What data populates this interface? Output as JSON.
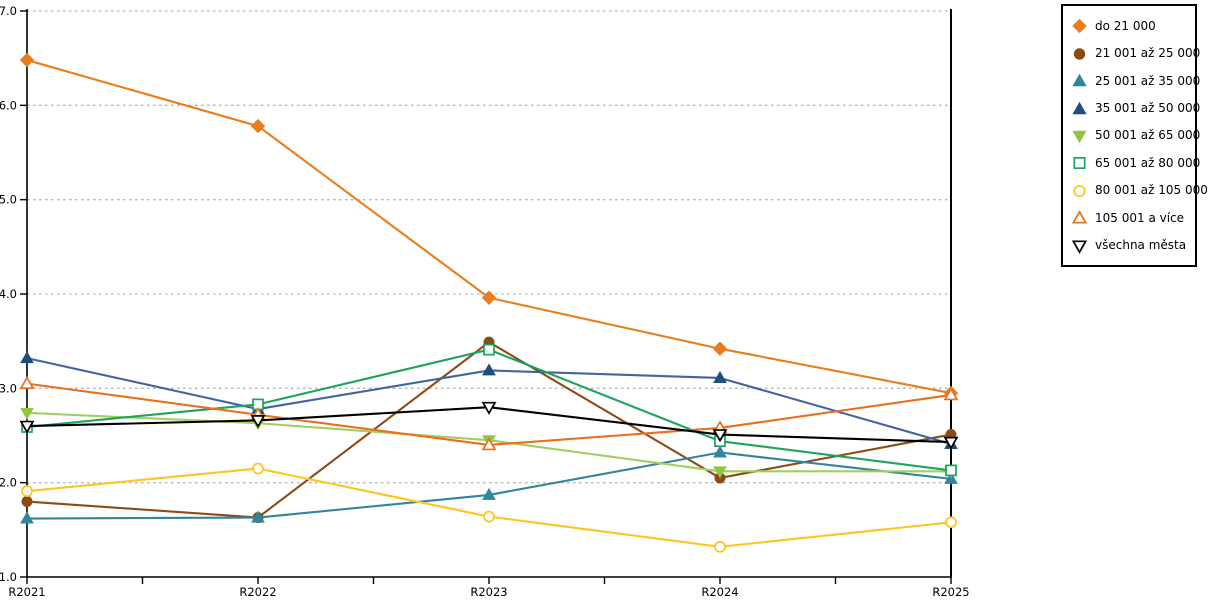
{
  "chart_data": {
    "type": "line",
    "title": "",
    "categories": [
      "R2021",
      "R2022",
      "R2023",
      "R2024",
      "R2025"
    ],
    "y_ticks": [
      "1.0",
      "2.0",
      "3.0",
      "4.0",
      "5.0",
      "6.0",
      "7.0"
    ],
    "ylim": [
      1.0,
      7.0
    ],
    "grid": "horizontal-dotted",
    "legend_position": "top-right",
    "colors": {
      "axis": "#000000",
      "gridline": "#B3B3B3",
      "background": "#FFFFFF"
    },
    "series": [
      {
        "name": "do 21 000",
        "color": "#E87D1E",
        "marker": "diamond",
        "marker_style": "filled",
        "values": [
          6.48,
          5.78,
          3.96,
          3.42,
          2.95
        ]
      },
      {
        "name": "21 001 až 25 000",
        "color": "#8C4A15",
        "marker": "circle",
        "marker_style": "filled",
        "values": [
          1.8,
          1.63,
          3.49,
          2.05,
          2.51
        ]
      },
      {
        "name": "25 001 až 35 000",
        "color": "#31859C",
        "marker": "triangle-up",
        "marker_style": "filled",
        "values": [
          1.62,
          1.63,
          1.87,
          2.32,
          2.04
        ]
      },
      {
        "name": "35 001 až 50 000",
        "color": "#40659C",
        "marker_color": "#1F4E79",
        "marker": "triangle-up",
        "marker_style": "filled",
        "values": [
          3.32,
          2.78,
          3.19,
          3.11,
          2.41
        ]
      },
      {
        "name": "50 001 až 65 000",
        "color": "#A4CD5F",
        "marker_color": "#8FC83C",
        "marker": "triangle-down",
        "marker_style": "filled",
        "values": [
          2.74,
          2.63,
          2.45,
          2.12,
          2.12
        ]
      },
      {
        "name": "65 001 až 80 000",
        "color": "#1EA35C",
        "marker": "square",
        "marker_style": "open",
        "values": [
          2.59,
          2.83,
          3.41,
          2.44,
          2.13
        ]
      },
      {
        "name": "80 001 až 105 000",
        "color": "#FFC41E",
        "marker": "circle",
        "marker_style": "open",
        "values": [
          1.91,
          2.15,
          1.64,
          1.32,
          1.58
        ]
      },
      {
        "name": "105 001 a více",
        "color": "#E8701C",
        "marker": "triangle-up",
        "marker_style": "open",
        "values": [
          3.05,
          2.72,
          2.4,
          2.58,
          2.93
        ]
      },
      {
        "name": "všechna města",
        "color": "#000000",
        "marker": "triangle-down",
        "marker_style": "open",
        "values": [
          2.6,
          2.66,
          2.8,
          2.51,
          2.43
        ]
      }
    ]
  }
}
